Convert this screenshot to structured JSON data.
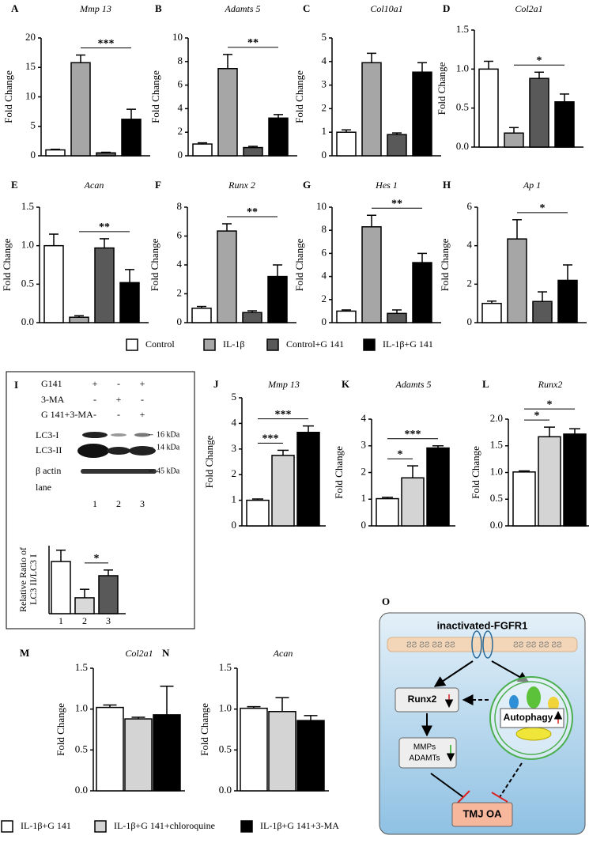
{
  "chart_data": [
    {
      "type": "bar",
      "panel": "A",
      "title": "Mmp 13",
      "y_label": "Fold Change",
      "categories": [
        null,
        null,
        null,
        null
      ],
      "values": [
        1.0,
        15.8,
        0.5,
        6.2
      ],
      "errors": [
        0.1,
        1.3,
        0.1,
        1.7
      ],
      "colors": [
        "#ffffff",
        "#a6a6a6",
        "#595959",
        "#000000"
      ],
      "ylim": [
        0,
        20
      ],
      "yticks": [
        0,
        5,
        10,
        15,
        20
      ],
      "significance": [
        {
          "label": "***",
          "bars": [
            1,
            3
          ]
        }
      ]
    },
    {
      "type": "bar",
      "panel": "B",
      "title": "Adamts 5",
      "y_label": "Fold Change",
      "categories": [
        null,
        null,
        null,
        null
      ],
      "values": [
        1.0,
        7.4,
        0.7,
        3.2
      ],
      "errors": [
        0.1,
        1.2,
        0.1,
        0.3
      ],
      "colors": [
        "#ffffff",
        "#a6a6a6",
        "#595959",
        "#000000"
      ],
      "ylim": [
        0,
        10
      ],
      "yticks": [
        0,
        2,
        4,
        6,
        8,
        10
      ],
      "significance": [
        {
          "label": "**",
          "bars": [
            1,
            3
          ]
        }
      ]
    },
    {
      "type": "bar",
      "panel": "C",
      "title": "Col10a1",
      "y_label": "Fold Change",
      "categories": [
        null,
        null,
        null,
        null
      ],
      "values": [
        1.0,
        3.95,
        0.9,
        3.55
      ],
      "errors": [
        0.1,
        0.4,
        0.07,
        0.4
      ],
      "colors": [
        "#ffffff",
        "#a6a6a6",
        "#595959",
        "#000000"
      ],
      "ylim": [
        0,
        5
      ],
      "yticks": [
        0,
        1,
        2,
        3,
        4,
        5
      ]
    },
    {
      "type": "bar",
      "panel": "D",
      "title": "Col2a1",
      "y_label": "Fold Change",
      "categories": [
        null,
        null,
        null,
        null
      ],
      "values": [
        1.0,
        0.18,
        0.88,
        0.58
      ],
      "errors": [
        0.1,
        0.07,
        0.08,
        0.1
      ],
      "colors": [
        "#ffffff",
        "#a6a6a6",
        "#595959",
        "#000000"
      ],
      "ylim": [
        0,
        1.5
      ],
      "yticks": [
        {
          "value": 0,
          "label": "0.0"
        },
        0.5,
        {
          "value": 1,
          "label": "1.0"
        },
        1.5
      ],
      "significance": [
        {
          "label": "*",
          "bars": [
            1,
            3
          ]
        }
      ]
    },
    {
      "type": "bar",
      "panel": "E",
      "title": "Acan",
      "y_label": "Fold Change",
      "categories": [
        null,
        null,
        null,
        null
      ],
      "values": [
        1.0,
        0.07,
        0.97,
        0.52
      ],
      "errors": [
        0.15,
        0.02,
        0.12,
        0.17
      ],
      "colors": [
        "#ffffff",
        "#a6a6a6",
        "#595959",
        "#000000"
      ],
      "ylim": [
        0,
        1.5
      ],
      "yticks": [
        {
          "value": 0,
          "label": "0.0"
        },
        0.5,
        {
          "value": 1,
          "label": "1.0"
        },
        1.5
      ],
      "significance": [
        {
          "label": "**",
          "bars": [
            1,
            3
          ]
        }
      ]
    },
    {
      "type": "bar",
      "panel": "F",
      "title": "Runx 2",
      "y_label": "Fold Change",
      "categories": [
        null,
        null,
        null,
        null
      ],
      "values": [
        1.0,
        6.35,
        0.7,
        3.2
      ],
      "errors": [
        0.12,
        0.5,
        0.12,
        0.8
      ],
      "colors": [
        "#ffffff",
        "#a6a6a6",
        "#595959",
        "#000000"
      ],
      "ylim": [
        0,
        8
      ],
      "yticks": [
        0,
        2,
        4,
        6,
        8
      ],
      "significance": [
        {
          "label": "**",
          "bars": [
            1,
            3
          ]
        }
      ]
    },
    {
      "type": "bar",
      "panel": "G",
      "title": "Hes 1",
      "y_label": "Fold Change",
      "categories": [
        null,
        null,
        null,
        null
      ],
      "values": [
        1.0,
        8.3,
        0.8,
        5.2
      ],
      "errors": [
        0.1,
        1.0,
        0.3,
        0.8
      ],
      "colors": [
        "#ffffff",
        "#a6a6a6",
        "#595959",
        "#000000"
      ],
      "ylim": [
        0,
        10
      ],
      "yticks": [
        0,
        2,
        4,
        6,
        8,
        10
      ],
      "significance": [
        {
          "label": "**",
          "bars": [
            1,
            3
          ]
        }
      ]
    },
    {
      "type": "bar",
      "panel": "H",
      "title": "Ap 1",
      "y_label": "Fold Change",
      "categories": [
        null,
        null,
        null,
        null
      ],
      "values": [
        1.0,
        4.35,
        1.1,
        2.2
      ],
      "errors": [
        0.12,
        1.0,
        0.5,
        0.8
      ],
      "colors": [
        "#ffffff",
        "#a6a6a6",
        "#595959",
        "#000000"
      ],
      "ylim": [
        0,
        6
      ],
      "yticks": [
        0,
        2,
        4,
        6
      ],
      "significance": [
        {
          "label": "*",
          "bars": [
            1,
            3
          ]
        }
      ]
    },
    {
      "type": "bar",
      "y_label": [
        "Relative Ratio of",
        "LC3 II/LC3 I"
      ],
      "categories": [
        "1",
        "2",
        "3"
      ],
      "values": [
        9.2,
        2.8,
        6.7
      ],
      "errors": [
        2.0,
        1.5,
        1.0
      ],
      "colors": [
        "#ffffff",
        "#d9d9d9",
        "#595959"
      ],
      "ylim": [
        0,
        12
      ],
      "significance": [
        {
          "label": "*",
          "bars": [
            1,
            2
          ]
        }
      ]
    },
    {
      "type": "bar",
      "panel": "J",
      "title": "Mmp 13",
      "y_label": "Fold Change",
      "categories": [
        null,
        null,
        null
      ],
      "values": [
        1.0,
        2.75,
        3.65
      ],
      "errors": [
        0.05,
        0.2,
        0.25
      ],
      "colors": [
        "#ffffff",
        "#d4d4d4",
        "#000000"
      ],
      "ylim": [
        0,
        5
      ],
      "yticks": [
        0,
        1,
        2,
        3,
        4,
        5
      ],
      "significance": [
        {
          "label": "***",
          "bars": [
            0,
            1
          ]
        },
        {
          "label": "***",
          "bars": [
            0,
            2
          ]
        }
      ]
    },
    {
      "type": "bar",
      "panel": "K",
      "title": "Adamts 5",
      "y_label": "Fold Change",
      "categories": [
        null,
        null,
        null
      ],
      "values": [
        1.02,
        1.8,
        2.92
      ],
      "errors": [
        0.05,
        0.45,
        0.08
      ],
      "colors": [
        "#ffffff",
        "#d4d4d4",
        "#000000"
      ],
      "ylim": [
        0,
        4
      ],
      "yticks": [
        0,
        1,
        2,
        3,
        4
      ],
      "significance": [
        {
          "label": "*",
          "bars": [
            0,
            1
          ]
        },
        {
          "label": "***",
          "bars": [
            0,
            2
          ]
        }
      ]
    },
    {
      "type": "bar",
      "panel": "L",
      "title": "Runx2",
      "y_label": "Fold Change",
      "categories": [
        null,
        null,
        null
      ],
      "values": [
        1.01,
        1.67,
        1.72
      ],
      "errors": [
        0.02,
        0.18,
        0.1
      ],
      "colors": [
        "#ffffff",
        "#d4d4d4",
        "#000000"
      ],
      "ylim": [
        0,
        2
      ],
      "yticks": [
        {
          "value": 0,
          "label": "0.0"
        },
        0.5,
        {
          "value": 1,
          "label": "1.0"
        },
        1.5,
        {
          "value": 2,
          "label": "2.0"
        }
      ],
      "significance": [
        {
          "label": "*",
          "bars": [
            0,
            1
          ]
        },
        {
          "label": "*",
          "bars": [
            0,
            2
          ]
        }
      ]
    },
    {
      "type": "bar",
      "panel": "M",
      "title": "Col2a1",
      "y_label": "Fold Change",
      "categories": [
        null,
        null,
        null
      ],
      "values": [
        1.02,
        0.88,
        0.93
      ],
      "errors": [
        0.03,
        0.02,
        0.35
      ],
      "colors": [
        "#ffffff",
        "#d4d4d4",
        "#000000"
      ],
      "ylim": [
        0,
        1.5
      ],
      "yticks": [
        {
          "value": 0,
          "label": "0.0"
        },
        0.5,
        {
          "value": 1,
          "label": "1.0"
        },
        1.5
      ]
    },
    {
      "type": "bar",
      "panel": "N",
      "title": "Acan",
      "y_label": "Fold Change",
      "categories": [
        null,
        null,
        null
      ],
      "values": [
        1.01,
        0.97,
        0.86
      ],
      "errors": [
        0.02,
        0.17,
        0.06
      ],
      "colors": [
        "#ffffff",
        "#d4d4d4",
        "#000000"
      ],
      "ylim": [
        0,
        1.5
      ],
      "yticks": [
        {
          "value": 0,
          "label": "0.0"
        },
        0.5,
        {
          "value": 1,
          "label": "1.0"
        },
        1.5
      ]
    }
  ],
  "legends": [
    {
      "items": [
        {
          "name": "Control",
          "color": "#ffffff"
        },
        {
          "name": "IL-1β",
          "color": "#a6a6a6"
        },
        {
          "name": "Control+G 141",
          "color": "#595959"
        },
        {
          "name": "IL-1β+G 141",
          "color": "#000000"
        }
      ]
    },
    {
      "items": [
        {
          "name": "IL-1β+G 141",
          "color": "#ffffff"
        },
        {
          "name": "IL-1β+G 141+chloroquine",
          "color": "#d4d4d4"
        },
        {
          "name": "IL-1β+G 141+3-MA",
          "color": "#000000"
        }
      ]
    }
  ],
  "blot": {
    "panel": "I",
    "conditions": [
      {
        "name": "G141",
        "signs": [
          "+",
          "-",
          "+"
        ]
      },
      {
        "name": "3-MA",
        "signs": [
          "-",
          "+",
          "-"
        ]
      },
      {
        "name": "G 141+3-MA",
        "signs": [
          "-",
          "-",
          "+"
        ]
      }
    ],
    "bands": [
      {
        "name": "LC3-I",
        "marker": "16 kDa"
      },
      {
        "name": "LC3-II",
        "marker": "14 kDa"
      },
      {
        "name": "β actin",
        "marker": "45 kDa"
      }
    ],
    "lane_label": "lane",
    "lanes": [
      "1",
      "2",
      "3"
    ]
  },
  "diagram": {
    "panel": "O",
    "receptor": "inactivated-FGFR1",
    "runx2": "Runx2",
    "autophagy": "Autophagy",
    "mmps": [
      "MMPs",
      "ADAMTs"
    ],
    "outcome": "TMJ OA"
  }
}
